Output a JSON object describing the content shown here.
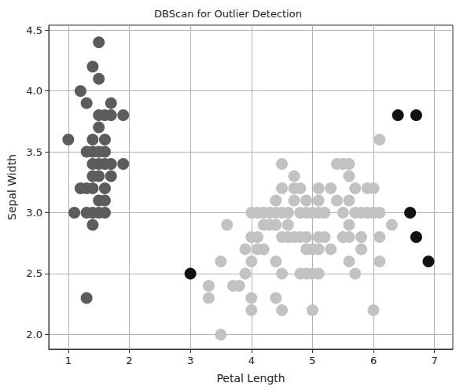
{
  "chart_data": {
    "type": "scatter",
    "title": "DBScan for Outlier Detection",
    "x_label": "Petal Length",
    "y_label": "Sepal Width",
    "xlim": [
      0.68,
      7.3
    ],
    "xticks": [
      1,
      2,
      3,
      4,
      5,
      6,
      7
    ],
    "ylim": [
      1.88,
      4.54
    ],
    "yticks": [
      {
        "value": 2,
        "label": "2.0"
      },
      {
        "value": 2.5,
        "label": "2.5"
      },
      {
        "value": 3,
        "label": "3.0"
      },
      {
        "value": 3.5,
        "label": "3.5"
      },
      {
        "value": 4,
        "label": "4.0"
      },
      {
        "value": 4.5,
        "label": "4.5"
      }
    ],
    "grid": true,
    "marker": "circle",
    "series": [
      {
        "color": "#5c5c5c",
        "x": [
          1.0,
          1.1,
          1.2,
          1.2,
          1.3,
          1.3,
          1.3,
          1.3,
          1.3,
          1.4,
          1.4,
          1.4,
          1.4,
          1.4,
          1.4,
          1.4,
          1.4,
          1.5,
          1.5,
          1.5,
          1.5,
          1.5,
          1.5,
          1.5,
          1.5,
          1.6,
          1.6,
          1.6,
          1.6,
          1.6,
          1.6,
          1.7,
          1.7,
          1.7,
          1.7,
          1.9,
          1.9,
          1.6,
          1.5
        ],
        "values": [
          3.6,
          3.0,
          3.2,
          4.0,
          3.5,
          3.2,
          3.0,
          2.3,
          3.9,
          3.5,
          3.0,
          3.2,
          3.6,
          3.4,
          2.9,
          4.2,
          3.3,
          3.1,
          3.4,
          3.7,
          4.4,
          4.1,
          3.8,
          3.5,
          3.0,
          3.4,
          3.2,
          3.1,
          3.8,
          3.5,
          3.0,
          3.9,
          3.8,
          3.4,
          3.3,
          3.8,
          3.4,
          3.6,
          3.3
        ]
      },
      {
        "color": "#c2c2c2",
        "x": [
          3.3,
          3.3,
          3.5,
          3.5,
          3.6,
          3.7,
          3.8,
          3.9,
          3.9,
          4.0,
          4.0,
          4.0,
          4.0,
          4.0,
          4.1,
          4.1,
          4.1,
          4.2,
          4.2,
          4.2,
          4.3,
          4.3,
          4.4,
          4.4,
          4.4,
          4.4,
          4.4,
          4.5,
          4.5,
          4.5,
          4.5,
          4.5,
          4.5,
          4.6,
          4.6,
          4.6,
          4.7,
          4.7,
          4.7,
          4.7,
          4.8,
          4.8,
          4.8,
          4.8,
          4.9,
          4.9,
          4.9,
          4.9,
          4.9,
          5.0,
          5.0,
          5.0,
          5.0,
          5.1,
          5.1,
          5.1,
          5.1,
          5.1,
          5.1,
          5.2,
          5.2,
          5.3,
          5.3,
          5.4,
          5.4,
          5.5,
          5.5,
          5.5,
          5.6,
          5.6,
          5.6,
          5.6,
          5.6,
          5.7,
          5.7,
          5.7,
          5.8,
          5.8,
          5.8,
          5.9,
          5.9,
          6.0,
          6.0,
          6.0,
          6.1,
          6.1,
          6.1,
          6.1,
          6.3,
          5.6
        ],
        "values": [
          2.4,
          2.3,
          2.6,
          2.0,
          2.9,
          2.4,
          2.4,
          2.7,
          2.5,
          2.2,
          2.3,
          2.6,
          2.8,
          3.0,
          2.7,
          3.0,
          2.8,
          3.0,
          2.7,
          2.9,
          2.9,
          3.0,
          2.3,
          2.6,
          2.9,
          3.0,
          3.1,
          2.2,
          2.5,
          3.0,
          3.2,
          3.4,
          2.8,
          2.8,
          3.0,
          2.9,
          2.8,
          3.2,
          3.3,
          3.1,
          2.8,
          3.0,
          3.2,
          2.5,
          2.5,
          3.1,
          2.7,
          3.0,
          2.8,
          2.2,
          2.5,
          3.0,
          2.7,
          2.7,
          2.8,
          3.2,
          3.1,
          2.5,
          3.0,
          3.0,
          2.8,
          3.2,
          2.7,
          3.4,
          3.1,
          2.8,
          3.0,
          3.4,
          2.8,
          2.6,
          3.1,
          3.4,
          3.3,
          2.5,
          3.2,
          3.0,
          2.7,
          3.0,
          2.8,
          3.2,
          3.0,
          2.2,
          3.0,
          3.2,
          3.0,
          2.6,
          2.8,
          3.6,
          2.9,
          2.9
        ]
      },
      {
        "color": "#111111",
        "x": [
          3.0,
          6.4,
          6.7,
          6.6,
          6.7,
          6.9
        ],
        "values": [
          2.5,
          3.8,
          3.8,
          3.0,
          2.8,
          2.6
        ]
      }
    ]
  }
}
